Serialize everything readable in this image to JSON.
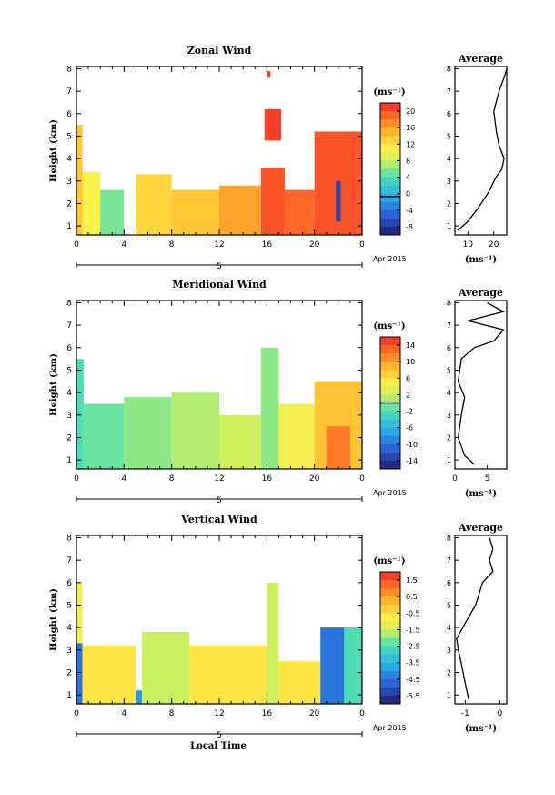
{
  "figure": {
    "date_label": "Apr 2015",
    "date_marker": "5",
    "xlabel_bottom": "Local Time",
    "ylabel": "Height (km)",
    "avg_title": "Average",
    "unit_label": "(ms⁻¹)"
  },
  "chart_data": [
    {
      "type": "heatmap",
      "title": "Zonal Wind",
      "xlabel": "",
      "ylabel": "Height (km)",
      "x_ticks": [
        "0",
        "4",
        "8",
        "12",
        "16",
        "20",
        "0"
      ],
      "xlim": [
        0,
        24
      ],
      "y_ticks": [
        "1",
        "2",
        "3",
        "4",
        "5",
        "6",
        "7",
        "8"
      ],
      "ylim": [
        0.6,
        8.1
      ],
      "colorbar": {
        "label": "(ms⁻¹)",
        "ticks": [
          "20",
          "16",
          "12",
          "8",
          "4",
          "0",
          "-4",
          "-8"
        ],
        "range": [
          -9,
          22
        ],
        "zero_line": 0
      },
      "regions": [
        {
          "x": [
            0,
            0.5
          ],
          "y": [
            0.6,
            5.5
          ],
          "value": 14
        },
        {
          "x": [
            0.5,
            2.0
          ],
          "y": [
            0.6,
            3.4
          ],
          "value": 11
        },
        {
          "x": [
            2.0,
            4.0
          ],
          "y": [
            0.6,
            2.6
          ],
          "value": 6
        },
        {
          "x": [
            5.0,
            8.0
          ],
          "y": [
            0.6,
            3.3
          ],
          "value": 13
        },
        {
          "x": [
            8.0,
            12.0
          ],
          "y": [
            0.6,
            2.6
          ],
          "value": 14
        },
        {
          "x": [
            12.0,
            15.5
          ],
          "y": [
            0.6,
            2.8
          ],
          "value": 16
        },
        {
          "x": [
            15.5,
            17.5
          ],
          "y": [
            0.6,
            3.6
          ],
          "value": 20
        },
        {
          "x": [
            15.8,
            17.2
          ],
          "y": [
            4.8,
            6.2
          ],
          "value": 21
        },
        {
          "x": [
            16.0,
            16.3
          ],
          "y": [
            7.6,
            7.9
          ],
          "value": 21
        },
        {
          "x": [
            17.5,
            20.0
          ],
          "y": [
            0.6,
            2.6
          ],
          "value": 19
        },
        {
          "x": [
            20.0,
            24.0
          ],
          "y": [
            0.6,
            5.2
          ],
          "value": 20
        },
        {
          "x": [
            21.8,
            22.2
          ],
          "y": [
            1.2,
            3.0
          ],
          "value": -6
        }
      ],
      "average_profile": {
        "xlabel": "(ms⁻¹)",
        "x_ticks": [
          "10",
          "20"
        ],
        "xlim": [
          5,
          25
        ],
        "points": [
          [
            6,
            0.8
          ],
          [
            10,
            1.2
          ],
          [
            14,
            1.8
          ],
          [
            18,
            2.5
          ],
          [
            21,
            3.2
          ],
          [
            23,
            3.5
          ],
          [
            24,
            4.0
          ],
          [
            22,
            4.6
          ],
          [
            21,
            5.2
          ],
          [
            20,
            6.1
          ],
          [
            22,
            7.0
          ],
          [
            24,
            7.6
          ],
          [
            25,
            8.0
          ]
        ]
      }
    },
    {
      "type": "heatmap",
      "title": "Meridional Wind",
      "xlabel": "",
      "ylabel": "Height (km)",
      "x_ticks": [
        "0",
        "4",
        "8",
        "12",
        "16",
        "20",
        "0"
      ],
      "xlim": [
        0,
        24
      ],
      "y_ticks": [
        "1",
        "2",
        "3",
        "4",
        "5",
        "6",
        "7",
        "8"
      ],
      "ylim": [
        0.6,
        8.1
      ],
      "colorbar": {
        "label": "(ms⁻¹)",
        "ticks": [
          "14",
          "10",
          "6",
          "2",
          "-2",
          "-6",
          "-10",
          "-14"
        ],
        "range": [
          -16,
          16
        ],
        "zero_line": 0
      },
      "regions": [
        {
          "x": [
            0,
            0.6
          ],
          "y": [
            0.6,
            5.5
          ],
          "value": -2
        },
        {
          "x": [
            0.6,
            4.0
          ],
          "y": [
            0.6,
            3.5
          ],
          "value": -1
        },
        {
          "x": [
            4.0,
            8.0
          ],
          "y": [
            0.6,
            3.8
          ],
          "value": 0
        },
        {
          "x": [
            8.0,
            12.0
          ],
          "y": [
            0.6,
            4.0
          ],
          "value": 1
        },
        {
          "x": [
            12.0,
            15.5
          ],
          "y": [
            0.6,
            3.0
          ],
          "value": 2
        },
        {
          "x": [
            15.5,
            17.0
          ],
          "y": [
            0.6,
            6.0
          ],
          "value": 0
        },
        {
          "x": [
            17.0,
            20.0
          ],
          "y": [
            0.6,
            3.5
          ],
          "value": 4
        },
        {
          "x": [
            20.0,
            24.0
          ],
          "y": [
            0.6,
            4.5
          ],
          "value": 8
        },
        {
          "x": [
            21.0,
            23.0
          ],
          "y": [
            0.6,
            2.5
          ],
          "value": 12
        }
      ],
      "average_profile": {
        "xlabel": "(ms⁻¹)",
        "x_ticks": [
          "0",
          "5"
        ],
        "xlim": [
          0,
          8
        ],
        "points": [
          [
            3,
            0.8
          ],
          [
            1.5,
            1.2
          ],
          [
            0.5,
            2.0
          ],
          [
            1.0,
            3.0
          ],
          [
            1.5,
            3.8
          ],
          [
            0.5,
            4.5
          ],
          [
            1.0,
            5.5
          ],
          [
            3.0,
            6.0
          ],
          [
            6.0,
            6.3
          ],
          [
            7.5,
            6.8
          ],
          [
            2.0,
            7.2
          ],
          [
            7.5,
            7.6
          ],
          [
            5.0,
            8.0
          ]
        ]
      }
    },
    {
      "type": "heatmap",
      "title": "Vertical Wind",
      "xlabel": "Local Time",
      "ylabel": "Height (km)",
      "x_ticks": [
        "0",
        "4",
        "8",
        "12",
        "16",
        "20",
        "0"
      ],
      "xlim": [
        0,
        24
      ],
      "y_ticks": [
        "1",
        "2",
        "3",
        "4",
        "5",
        "6",
        "7",
        "8"
      ],
      "ylim": [
        0.6,
        8.1
      ],
      "colorbar": {
        "label": "(ms⁻¹)",
        "ticks": [
          "1.5",
          "0.5",
          "-0.5",
          "-1.5",
          "-2.5",
          "-3.5",
          "-4.5",
          "-5.5"
        ],
        "range": [
          -6,
          2
        ],
        "zero_line": null
      },
      "regions": [
        {
          "x": [
            0,
            0.5
          ],
          "y": [
            0.6,
            3.3
          ],
          "value": -4.5
        },
        {
          "x": [
            0,
            0.5
          ],
          "y": [
            3.3,
            6.0
          ],
          "value": -1.0
        },
        {
          "x": [
            0.5,
            5.0
          ],
          "y": [
            0.6,
            3.2
          ],
          "value": -0.6
        },
        {
          "x": [
            5.0,
            5.5
          ],
          "y": [
            0.6,
            1.2
          ],
          "value": -4.0
        },
        {
          "x": [
            5.5,
            9.5
          ],
          "y": [
            0.6,
            3.8
          ],
          "value": -1.6
        },
        {
          "x": [
            9.5,
            16.0
          ],
          "y": [
            0.6,
            3.2
          ],
          "value": -0.6
        },
        {
          "x": [
            16.0,
            17.0
          ],
          "y": [
            0.6,
            6.0
          ],
          "value": -1.5
        },
        {
          "x": [
            17.0,
            20.5
          ],
          "y": [
            0.6,
            2.5
          ],
          "value": -0.6
        },
        {
          "x": [
            20.5,
            22.5
          ],
          "y": [
            0.6,
            4.0
          ],
          "value": -4.5
        },
        {
          "x": [
            22.5,
            24.0
          ],
          "y": [
            0.6,
            4.0
          ],
          "value": -2.5
        }
      ],
      "average_profile": {
        "xlabel": "(ms⁻¹)",
        "x_ticks": [
          "-1",
          "0"
        ],
        "xlim": [
          -1.3,
          0.2
        ],
        "points": [
          [
            -0.9,
            0.8
          ],
          [
            -1.0,
            1.5
          ],
          [
            -1.1,
            2.3
          ],
          [
            -1.2,
            3.0
          ],
          [
            -1.25,
            3.5
          ],
          [
            -1.0,
            4.2
          ],
          [
            -0.7,
            5.0
          ],
          [
            -0.5,
            6.0
          ],
          [
            -0.2,
            6.5
          ],
          [
            -0.3,
            7.0
          ],
          [
            -0.2,
            7.5
          ],
          [
            -0.3,
            8.0
          ]
        ]
      }
    }
  ]
}
